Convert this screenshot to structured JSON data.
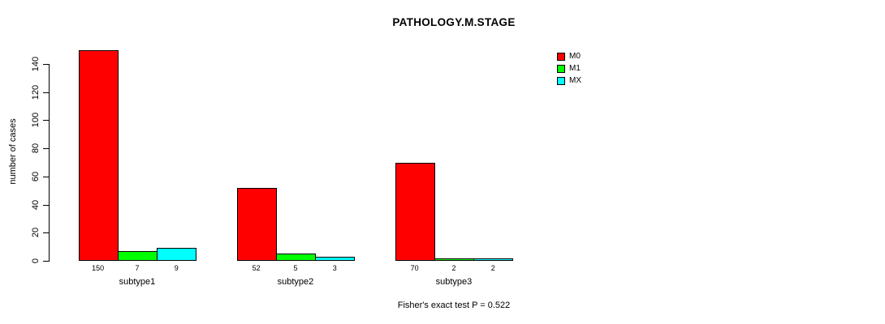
{
  "title": "PATHOLOGY.M.STAGE",
  "caption": "Fisher's exact test P = 0.522",
  "chart_data": {
    "type": "bar",
    "title": "PATHOLOGY.M.STAGE",
    "xlabel": "",
    "ylabel": "number of cases",
    "categories": [
      "subtype1",
      "subtype2",
      "subtype3"
    ],
    "series": [
      {
        "name": "M0",
        "color": "#ff0000",
        "values": [
          150,
          52,
          70
        ]
      },
      {
        "name": "M1",
        "color": "#00ff00",
        "values": [
          7,
          5,
          2
        ]
      },
      {
        "name": "MX",
        "color": "#00ffff",
        "values": [
          9,
          3,
          2
        ]
      }
    ],
    "bar_value_labels": [
      [
        "150",
        "7",
        "9"
      ],
      [
        "52",
        "5",
        "3"
      ],
      [
        "70",
        "2",
        "2"
      ]
    ],
    "y_ticks": [
      0,
      20,
      40,
      60,
      80,
      100,
      120,
      140
    ],
    "ylim": [
      0,
      140
    ],
    "grid": false,
    "legend_position": "top-right",
    "legend": [
      "M0",
      "M1",
      "MX"
    ],
    "annotation": "Fisher's exact test P = 0.522"
  }
}
